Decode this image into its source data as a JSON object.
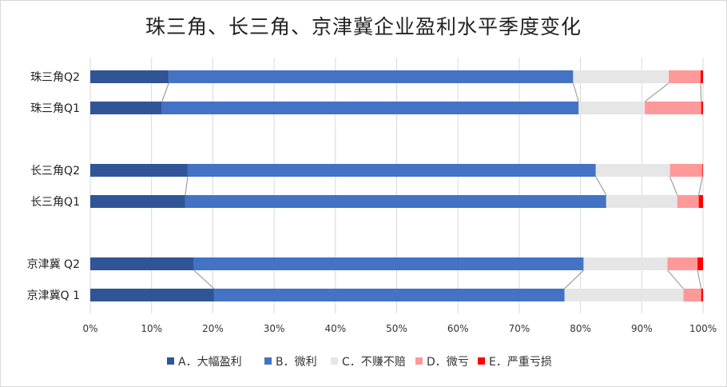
{
  "chart_data": {
    "type": "bar",
    "orientation": "horizontal",
    "stacked": "percent",
    "title": "珠三角、长三角、京津冀企业盈利水平季度变化",
    "categories": [
      "珠三角Q2",
      "珠三角Q1",
      "长三角Q2",
      "长三角Q1",
      "京津冀  Q2",
      "京津冀Q  1"
    ],
    "groups": [
      [
        0,
        1
      ],
      [
        2,
        3
      ],
      [
        4,
        5
      ]
    ],
    "series": [
      {
        "name": "A．大幅盈利",
        "color": "#2f5597",
        "values": [
          12.8,
          11.7,
          15.9,
          15.5,
          16.9,
          20.2
        ]
      },
      {
        "name": "B．微利",
        "color": "#4472c4",
        "values": [
          66.0,
          68.0,
          66.6,
          68.7,
          63.6,
          57.2
        ]
      },
      {
        "name": "C．不赚不赔",
        "color": "#e6e6e6",
        "values": [
          15.6,
          10.8,
          12.1,
          11.6,
          13.7,
          19.4
        ]
      },
      {
        "name": "D．微亏",
        "color": "#ff9999",
        "values": [
          5.2,
          9.2,
          5.3,
          3.5,
          4.9,
          2.9
        ]
      },
      {
        "name": "E．严重亏损",
        "color": "#ff0000",
        "values": [
          0.4,
          0.3,
          0.1,
          0.7,
          0.9,
          0.3
        ]
      }
    ],
    "xlim": [
      0,
      100
    ],
    "xticks": [
      "0%",
      "10%",
      "20%",
      "30%",
      "40%",
      "50%",
      "60%",
      "70%",
      "80%",
      "90%",
      "100%"
    ],
    "grid": true,
    "series_lines": true,
    "legend": "bottom"
  }
}
